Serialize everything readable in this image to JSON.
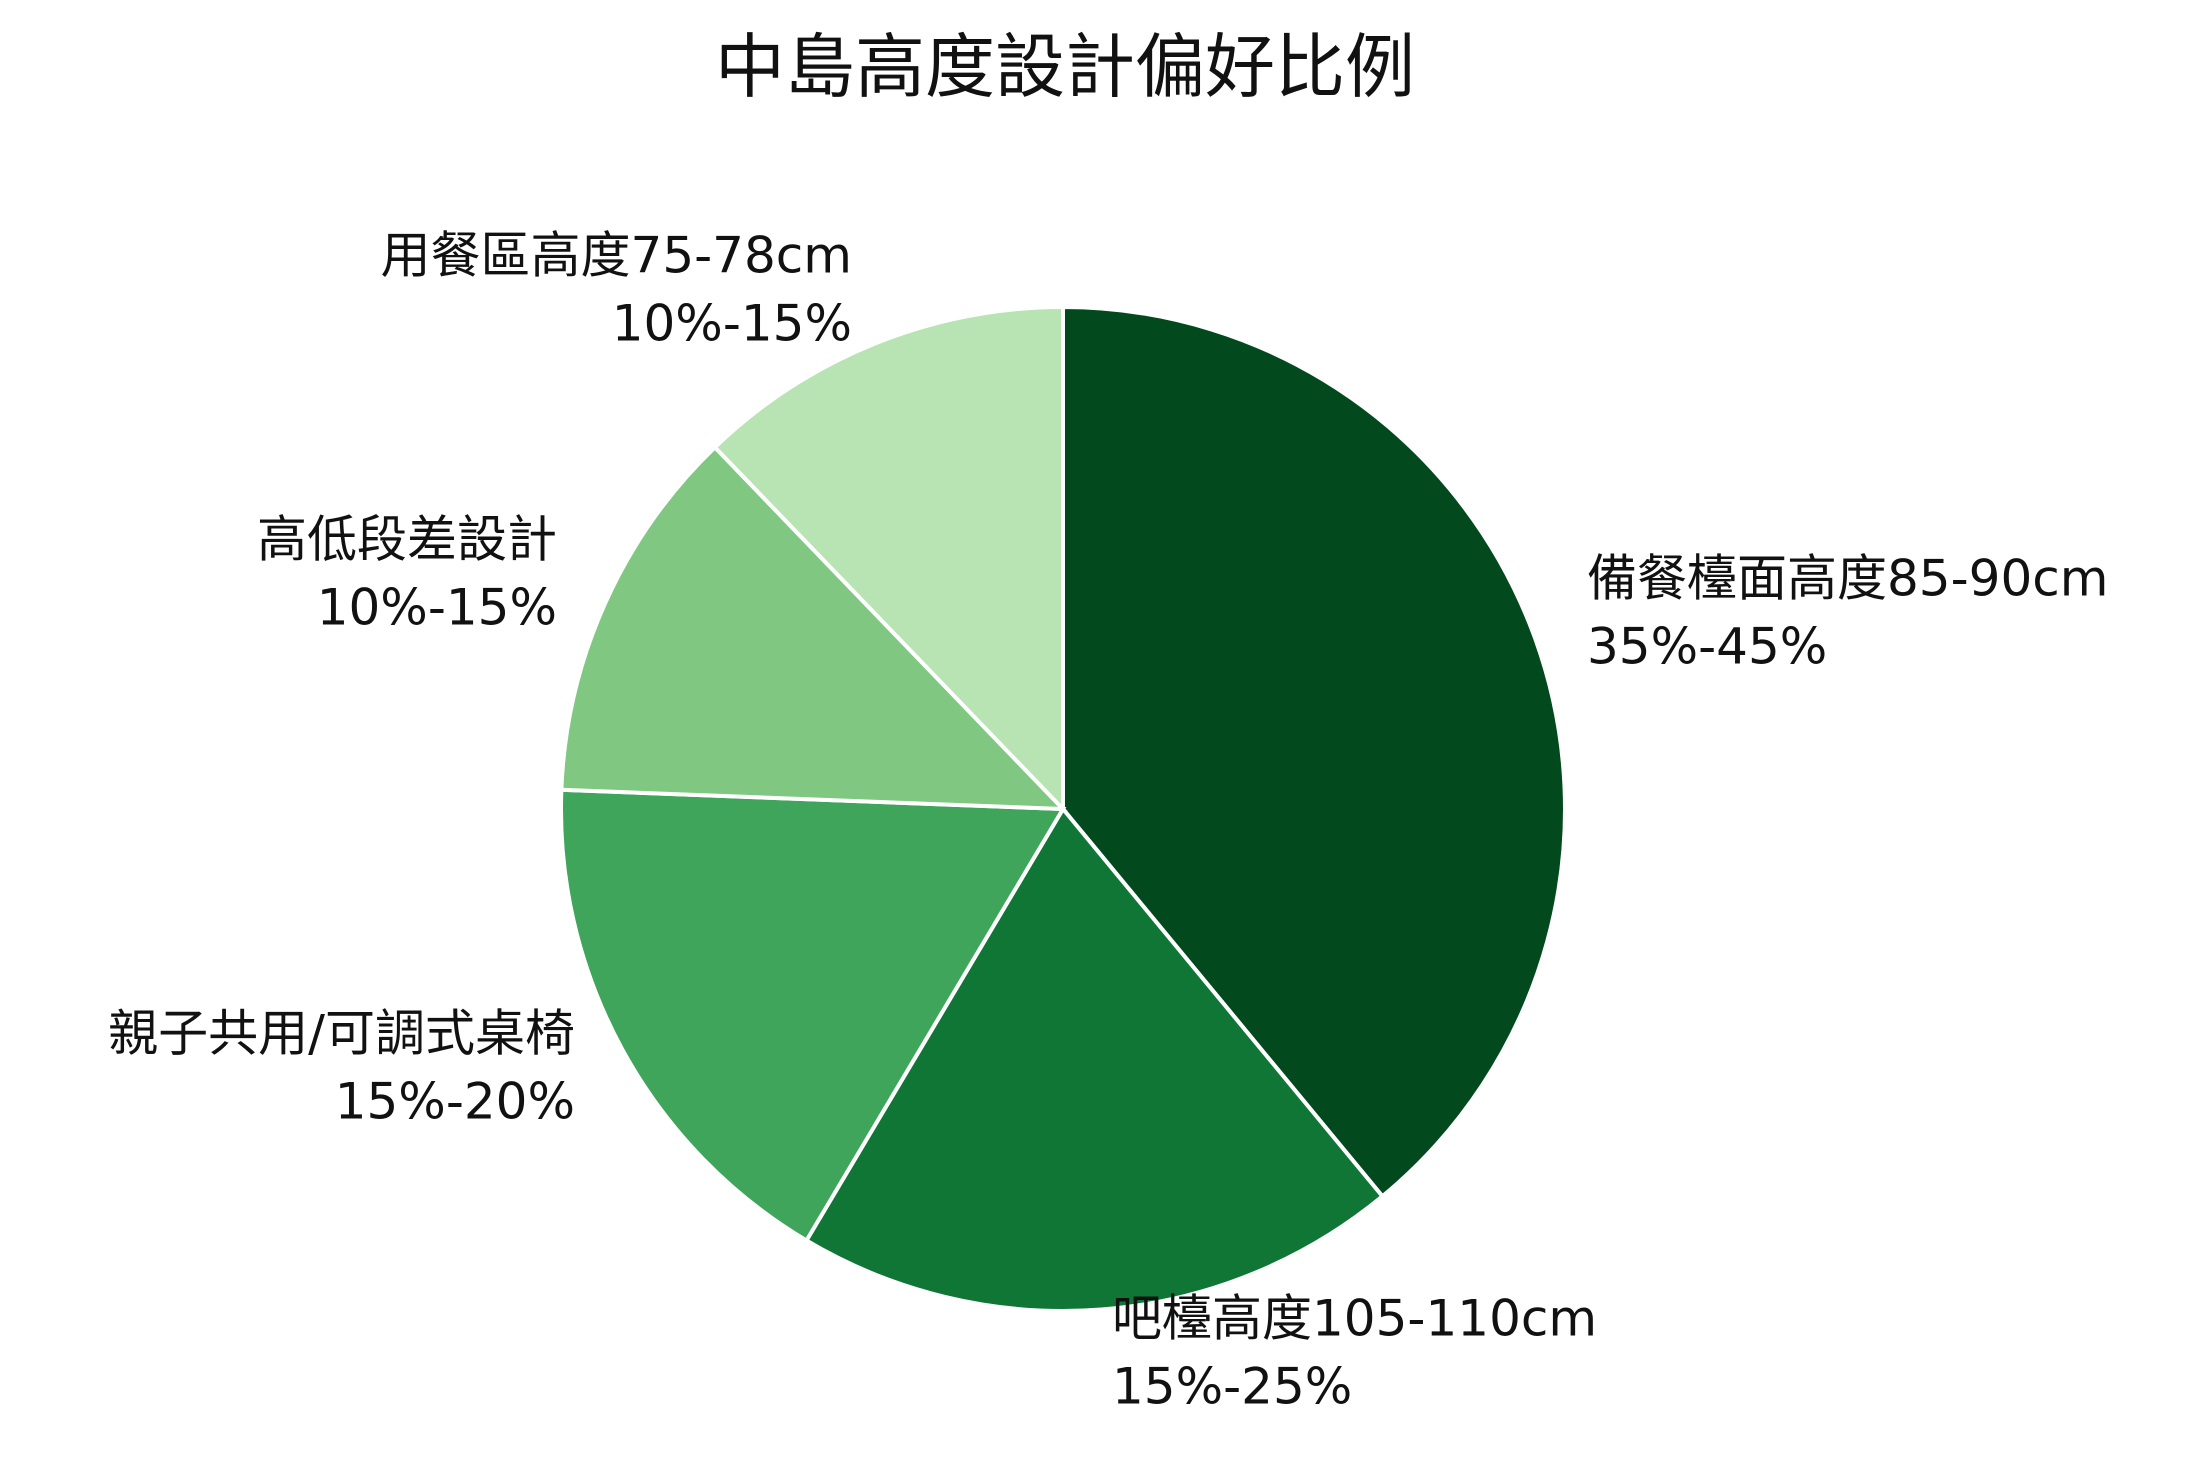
{
  "chart_data": {
    "type": "pie",
    "title": "中島高度設計偏好比例",
    "categories": [
      "備餐檯面高度85-90cm",
      "吧檯高度105-110cm",
      "親子共用/可調式桌椅",
      "高低段差設計",
      "用餐區高度75-78cm"
    ],
    "values": [
      40,
      20,
      17.5,
      12.5,
      12.5
    ],
    "value_labels": [
      "35%-45%",
      "15%-25%",
      "15%-20%",
      "10%-15%",
      "10%-15%"
    ],
    "colors": [
      "#02491e",
      "#107636",
      "#3ea55b",
      "#80c882",
      "#b8e3b2"
    ]
  }
}
